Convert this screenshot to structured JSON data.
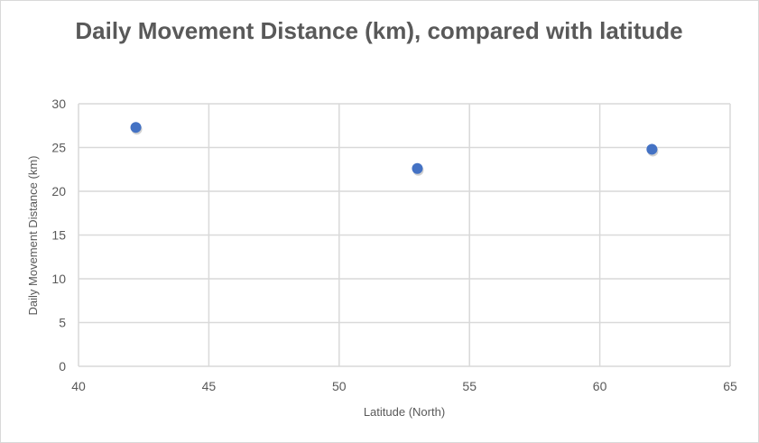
{
  "chart_data": {
    "type": "scatter",
    "title": "Daily Movement Distance (km), compared with latitude",
    "xlabel": "Latitude (North)",
    "ylabel": "Daily Movement Distance (km)",
    "xlim": [
      40,
      65
    ],
    "ylim": [
      0,
      30
    ],
    "xticks": [
      40,
      45,
      50,
      55,
      60,
      65
    ],
    "yticks": [
      0,
      5,
      10,
      15,
      20,
      25,
      30
    ],
    "grid": true,
    "legend": "none",
    "points": [
      {
        "x": 42.2,
        "y": 27.3
      },
      {
        "x": 53.0,
        "y": 22.6
      },
      {
        "x": 62.0,
        "y": 24.8
      }
    ],
    "marker_color": "#4472c4"
  }
}
